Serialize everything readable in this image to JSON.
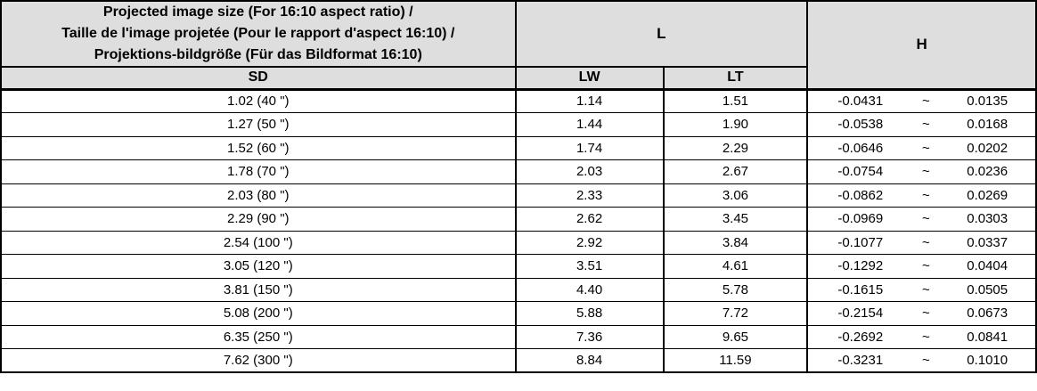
{
  "colors": {
    "header_bg": "#dedede",
    "border": "#000000",
    "row_bg": "#ffffff",
    "text": "#000000"
  },
  "table": {
    "header": {
      "size_title": "Projected image size (For 16:10 aspect ratio) /\nTaille de l'image projetée (Pour le rapport d'aspect 16:10) /\nProjektions-bildgröße (Für das Bildformat 16:10)",
      "l_label": "L",
      "h_label": "H",
      "sd_label": "SD",
      "lw_label": "LW",
      "lt_label": "LT"
    },
    "h_separator": "~",
    "rows": [
      {
        "sd": "1.02 (40 \")",
        "lw": "1.14",
        "lt": "1.51",
        "h_min": "-0.0431",
        "h_max": "0.0135"
      },
      {
        "sd": "1.27 (50 \")",
        "lw": "1.44",
        "lt": "1.90",
        "h_min": "-0.0538",
        "h_max": "0.0168"
      },
      {
        "sd": "1.52 (60 \")",
        "lw": "1.74",
        "lt": "2.29",
        "h_min": "-0.0646",
        "h_max": "0.0202"
      },
      {
        "sd": "1.78 (70 \")",
        "lw": "2.03",
        "lt": "2.67",
        "h_min": "-0.0754",
        "h_max": "0.0236"
      },
      {
        "sd": "2.03 (80 \")",
        "lw": "2.33",
        "lt": "3.06",
        "h_min": "-0.0862",
        "h_max": "0.0269"
      },
      {
        "sd": "2.29 (90 \")",
        "lw": "2.62",
        "lt": "3.45",
        "h_min": "-0.0969",
        "h_max": "0.0303"
      },
      {
        "sd": "2.54 (100 \")",
        "lw": "2.92",
        "lt": "3.84",
        "h_min": "-0.1077",
        "h_max": "0.0337"
      },
      {
        "sd": "3.05 (120 \")",
        "lw": "3.51",
        "lt": "4.61",
        "h_min": "-0.1292",
        "h_max": "0.0404"
      },
      {
        "sd": "3.81 (150 \")",
        "lw": "4.40",
        "lt": "5.78",
        "h_min": "-0.1615",
        "h_max": "0.0505"
      },
      {
        "sd": "5.08 (200 \")",
        "lw": "5.88",
        "lt": "7.72",
        "h_min": "-0.2154",
        "h_max": "0.0673"
      },
      {
        "sd": "6.35 (250 \")",
        "lw": "7.36",
        "lt": "9.65",
        "h_min": "-0.2692",
        "h_max": "0.0841"
      },
      {
        "sd": "7.62 (300 \")",
        "lw": "8.84",
        "lt": "11.59",
        "h_min": "-0.3231",
        "h_max": "0.1010"
      }
    ]
  }
}
